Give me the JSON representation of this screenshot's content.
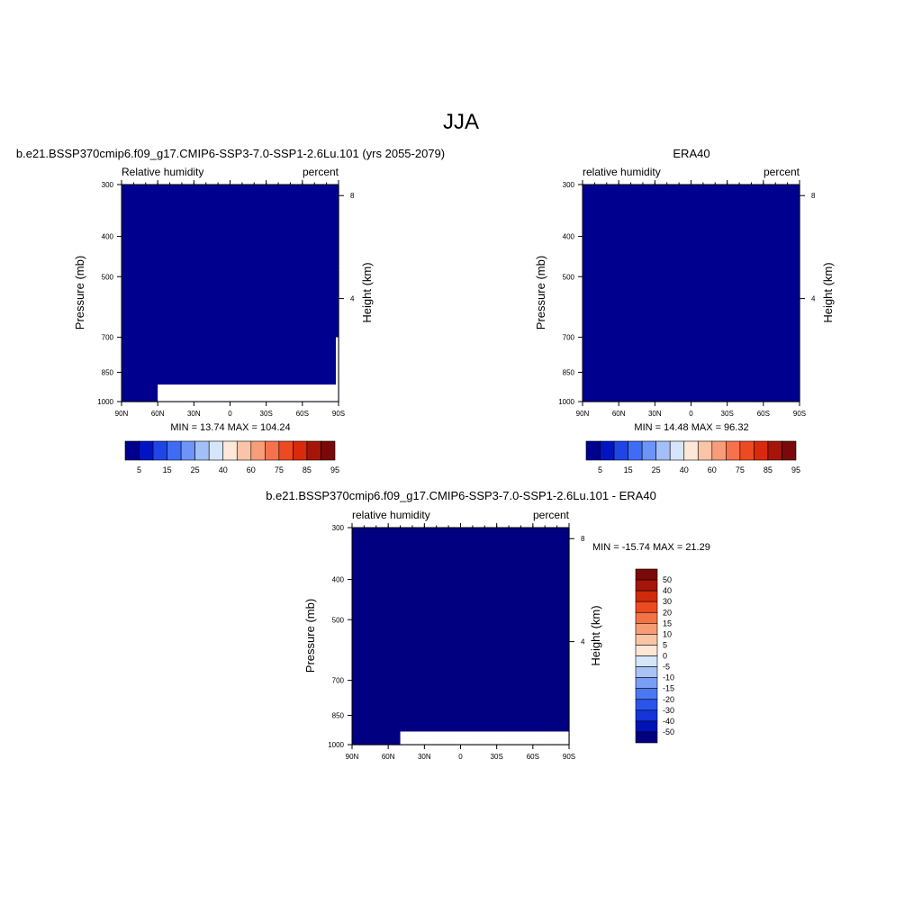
{
  "colors": {
    "full": [
      "#00008f",
      "#0014c4",
      "#1f45e6",
      "#3e6cf5",
      "#6d94f7",
      "#a3bff7",
      "#d6e6fa",
      "#fde8d8",
      "#fcc4a6",
      "#f89d78",
      "#f5724c",
      "#ee4a22",
      "#d92a0c",
      "#a6150a",
      "#7a0a0a"
    ],
    "diff": [
      "#000080",
      "#0011b8",
      "#1533d9",
      "#2a55eb",
      "#4a78f0",
      "#7a9ef5",
      "#a9c3f7",
      "#d5e5fa",
      "#fde6d4",
      "#fbc5a4",
      "#f79c74",
      "#f57246",
      "#ee4a20",
      "#d12a0b",
      "#a6150a",
      "#7a0909"
    ]
  },
  "chart_data": [
    {
      "type": "heatmap",
      "id": "model",
      "title": "b.e21.BSSP370cmip6.f09_g17.CMIP6-SSP3-7.0-SSP1-2.6Lu.101 (yrs 2055-2079)",
      "left_label": "Relative humidity",
      "right_label": "percent",
      "xlabel": "",
      "ylabel": "Pressure (mb)",
      "y2label": "Height (km)",
      "xticks": [
        "90N",
        "60N",
        "30N",
        "0",
        "30S",
        "60S",
        "90S"
      ],
      "yticks": [
        300,
        400,
        500,
        700,
        850,
        1000
      ],
      "y2ticks": [
        8,
        4
      ],
      "xlim": [
        -90,
        90
      ],
      "ylim": [
        1000,
        300
      ],
      "stats": "MIN =  13.74  MAX = 104.24",
      "min": 13.74,
      "max": 104.24,
      "levels": [
        5,
        10,
        15,
        20,
        25,
        30,
        40,
        50,
        60,
        70,
        75,
        80,
        85,
        90,
        95
      ],
      "colorbar_labels": [
        "5",
        "15",
        "25",
        "40",
        "60",
        "75",
        "85",
        "95"
      ],
      "missing": {
        "lat_from": 60,
        "p_from": 910
      },
      "right_strip_missing_from_p": 700
    },
    {
      "type": "heatmap",
      "id": "obs",
      "title": "ERA40",
      "left_label": "relative humidity",
      "right_label": "percent",
      "ylabel": "Pressure (mb)",
      "y2label": "Height (km)",
      "xticks": [
        "90N",
        "60N",
        "30N",
        "0",
        "30S",
        "60S",
        "90S"
      ],
      "yticks": [
        300,
        400,
        500,
        700,
        850,
        1000
      ],
      "y2ticks": [
        8,
        4
      ],
      "xlim": [
        -90,
        90
      ],
      "ylim": [
        1000,
        300
      ],
      "stats": "MIN =  14.48  MAX =  96.32",
      "min": 14.48,
      "max": 96.32,
      "levels": [
        5,
        10,
        15,
        20,
        25,
        30,
        40,
        50,
        60,
        70,
        75,
        80,
        85,
        90,
        95
      ],
      "colorbar_labels": [
        "5",
        "15",
        "25",
        "40",
        "60",
        "75",
        "85",
        "95"
      ]
    },
    {
      "type": "heatmap",
      "id": "diff",
      "title": "b.e21.BSSP370cmip6.f09_g17.CMIP6-SSP3-7.0-SSP1-2.6Lu.101 - ERA40",
      "left_label": "relative humidity",
      "right_label": "percent",
      "ylabel": "Pressure (mb)",
      "y2label": "Height (km)",
      "xticks": [
        "90N",
        "60N",
        "30N",
        "0",
        "30S",
        "60S",
        "90S"
      ],
      "yticks": [
        300,
        400,
        500,
        700,
        850,
        1000
      ],
      "y2ticks": [
        8,
        4
      ],
      "xlim": [
        -90,
        90
      ],
      "ylim": [
        1000,
        300
      ],
      "stats": "MIN = -15.74  MAX =  21.29",
      "min": -15.74,
      "max": 21.29,
      "levels": [
        -50,
        -40,
        -30,
        -20,
        -15,
        -10,
        -5,
        0,
        5,
        10,
        15,
        20,
        30,
        40,
        50
      ],
      "colorbar_labels": [
        "50",
        "40",
        "30",
        "20",
        "15",
        "10",
        "5",
        "0",
        "-5",
        "-10",
        "-15",
        "-20",
        "-30",
        "-40",
        "-50"
      ],
      "missing": {
        "lat_from": 50,
        "p_from": 930
      }
    }
  ],
  "figure": {
    "title": "JJA"
  }
}
